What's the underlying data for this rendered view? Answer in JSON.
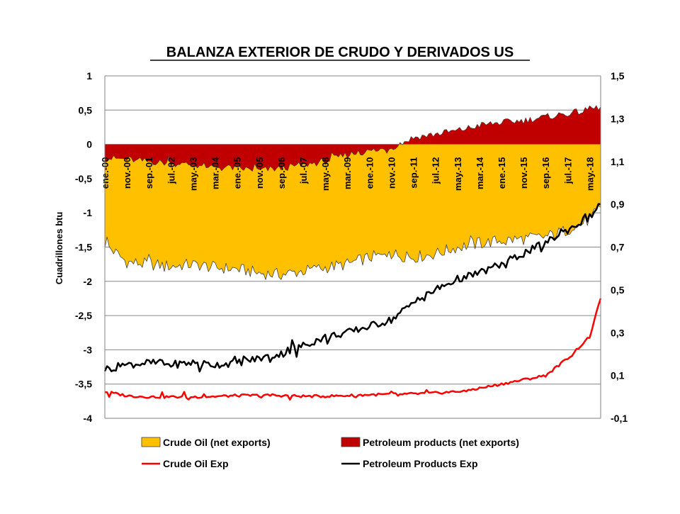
{
  "chart_data": {
    "type": "area",
    "title": "BALANZA EXTERIOR DE CRUDO Y DERIVADOS US",
    "ylabel": "Cuadrillones btu",
    "ylabel_right": "",
    "ylim": [
      -4,
      1
    ],
    "ylim_right": [
      -0.1,
      1.5
    ],
    "yticks": [
      "1",
      "0,5",
      "0",
      "-0,5",
      "-1",
      "-1,5",
      "-2",
      "-2,5",
      "-3",
      "-3,5",
      "-4"
    ],
    "yticks_right": [
      "1,5",
      "1,3",
      "1,1",
      "0,9",
      "0,7",
      "0,5",
      "0,3",
      "0,1",
      "-0,1"
    ],
    "x_labels": [
      "ene.-00",
      "nov.-00",
      "sep.-01",
      "jul.-02",
      "may.-03",
      "mar.-04",
      "ene.-05",
      "nov.-05",
      "sep.-06",
      "jul.-07",
      "may.-08",
      "mar.-09",
      "ene.-10",
      "nov.-10",
      "sep.-11",
      "jul.-12",
      "may.-13",
      "mar.-14",
      "ene.-15",
      "nov.-15",
      "sep.-16",
      "jul.-17",
      "may.-18"
    ],
    "grid": true,
    "legend_position": "bottom",
    "series": [
      {
        "name": "Crude Oil (net exports)",
        "type": "area",
        "axis": "left",
        "color": "#FFC000",
        "x": [
          "ene.-00",
          "nov.-00",
          "sep.-01",
          "jul.-02",
          "may.-03",
          "mar.-04",
          "ene.-05",
          "nov.-05",
          "sep.-06",
          "jul.-07",
          "may.-08",
          "mar.-09",
          "ene.-10",
          "nov.-10",
          "sep.-11",
          "jul.-12",
          "may.-13",
          "mar.-14",
          "ene.-15",
          "nov.-15",
          "sep.-16",
          "jul.-17",
          "may.-18",
          "sep.-18"
        ],
        "values": [
          -1.45,
          -1.72,
          -1.75,
          -1.78,
          -1.75,
          -1.8,
          -1.82,
          -1.88,
          -1.9,
          -1.85,
          -1.8,
          -1.75,
          -1.65,
          -1.6,
          -1.65,
          -1.6,
          -1.5,
          -1.45,
          -1.4,
          -1.38,
          -1.35,
          -1.25,
          -1.1,
          -0.92
        ]
      },
      {
        "name": "Petroleum products (net exports)",
        "type": "area",
        "axis": "left",
        "color": "#C00000",
        "x": [
          "ene.-00",
          "nov.-00",
          "sep.-01",
          "jul.-02",
          "may.-03",
          "mar.-04",
          "ene.-05",
          "nov.-05",
          "sep.-06",
          "jul.-07",
          "may.-08",
          "mar.-09",
          "ene.-10",
          "nov.-10",
          "sep.-11",
          "jul.-12",
          "may.-13",
          "mar.-14",
          "ene.-15",
          "nov.-15",
          "sep.-16",
          "jul.-17",
          "may.-18",
          "sep.-18"
        ],
        "values": [
          -0.2,
          -0.22,
          -0.25,
          -0.28,
          -0.3,
          -0.33,
          -0.35,
          -0.38,
          -0.35,
          -0.3,
          -0.25,
          -0.15,
          -0.1,
          -0.05,
          0.1,
          0.15,
          0.2,
          0.28,
          0.32,
          0.35,
          0.4,
          0.45,
          0.5,
          0.55
        ]
      },
      {
        "name": "Crude Oil Exp",
        "type": "line",
        "axis": "right",
        "color": "#FF0000",
        "x": [
          "ene.-00",
          "nov.-00",
          "sep.-01",
          "jul.-02",
          "may.-03",
          "mar.-04",
          "ene.-05",
          "nov.-05",
          "sep.-06",
          "jul.-07",
          "may.-08",
          "mar.-09",
          "ene.-10",
          "nov.-10",
          "sep.-11",
          "jul.-12",
          "may.-13",
          "mar.-14",
          "ene.-15",
          "nov.-15",
          "sep.-16",
          "jul.-17",
          "may.-18",
          "sep.-18"
        ],
        "values": [
          0.025,
          0.005,
          0.0,
          0.0,
          0.0,
          0.002,
          0.006,
          0.007,
          0.006,
          0.003,
          0.003,
          0.006,
          0.01,
          0.012,
          0.014,
          0.018,
          0.025,
          0.04,
          0.06,
          0.08,
          0.1,
          0.18,
          0.28,
          0.46
        ]
      },
      {
        "name": "Petroleum Products Exp",
        "type": "line",
        "axis": "right",
        "color": "#000000",
        "x": [
          "ene.-00",
          "nov.-00",
          "sep.-01",
          "jul.-02",
          "may.-03",
          "mar.-04",
          "ene.-05",
          "nov.-05",
          "sep.-06",
          "jul.-07",
          "may.-08",
          "mar.-09",
          "ene.-10",
          "nov.-10",
          "sep.-11",
          "jul.-12",
          "may.-13",
          "mar.-14",
          "ene.-15",
          "nov.-15",
          "sep.-16",
          "jul.-17",
          "may.-18",
          "sep.-18"
        ],
        "values": [
          0.13,
          0.15,
          0.16,
          0.15,
          0.16,
          0.15,
          0.16,
          0.18,
          0.2,
          0.24,
          0.28,
          0.3,
          0.33,
          0.36,
          0.44,
          0.5,
          0.55,
          0.58,
          0.62,
          0.67,
          0.72,
          0.78,
          0.84,
          0.9
        ]
      }
    ]
  }
}
